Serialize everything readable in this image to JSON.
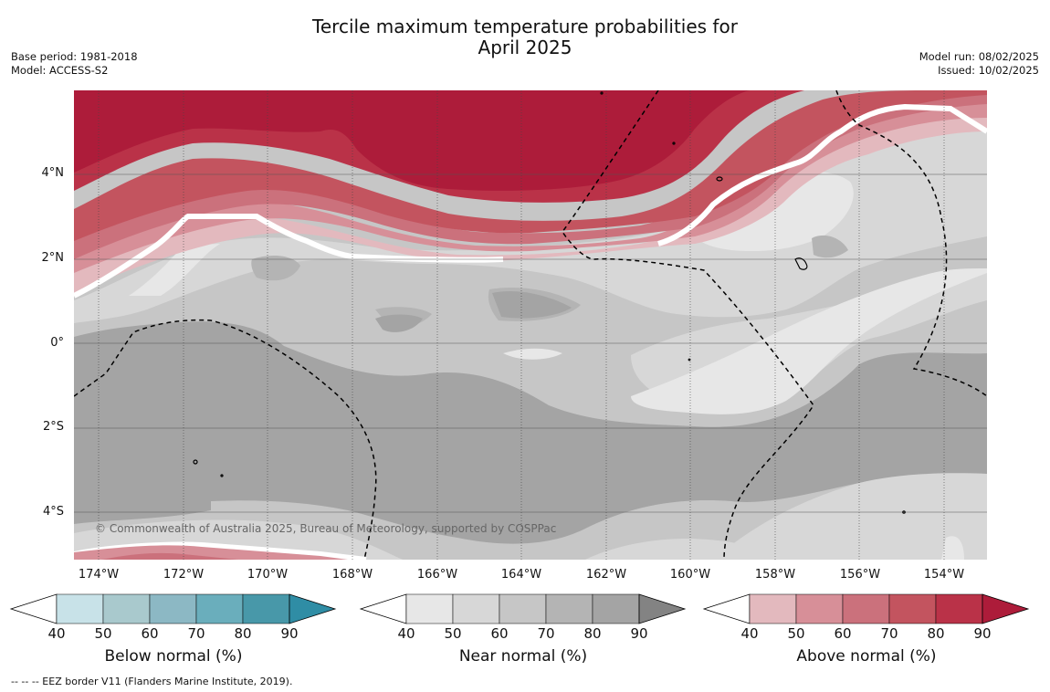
{
  "header": {
    "title_line1": "Tercile maximum temperature probabilities for",
    "title_line2": "April 2025",
    "base_period": "Base period: 1981-2018",
    "model": "Model: ACCESS-S2",
    "model_run": "Model run: 08/02/2025",
    "issued": "Issued: 10/02/2025"
  },
  "map": {
    "lat_labels": [
      "4°N",
      "2°N",
      "0°",
      "2°S",
      "4°S"
    ],
    "lon_labels": [
      "174°W",
      "172°W",
      "170°W",
      "168°W",
      "166°W",
      "164°W",
      "162°W",
      "160°W",
      "158°W",
      "156°W",
      "154°W"
    ],
    "copyright": "© Commonwealth of Australia 2025, Bureau of Meteorology, supported by COSPPac",
    "colors": {
      "near_normal_levels": [
        "#e7e7e7",
        "#d7d7d7",
        "#c6c6c6",
        "#b4b4b4",
        "#a4a4a4",
        "#838383"
      ],
      "above_normal_levels": [
        "#e3b9be",
        "#d78f98",
        "#cb717c",
        "#c3545f",
        "#ba3248",
        "#ad1c3a"
      ],
      "below_normal_levels": [
        "#c8e2e8",
        "#a9c9cd",
        "#8cb8c4",
        "#6aaebc",
        "#4898a9",
        "#2f8da5"
      ],
      "ocean_base": "#c6c6c6"
    }
  },
  "legends": [
    {
      "title": "Below normal (%)",
      "ticks": [
        "40",
        "50",
        "60",
        "70",
        "80",
        "90"
      ],
      "colors": [
        "#c8e2e8",
        "#a9c9cd",
        "#8cb8c4",
        "#6aaebc",
        "#4898a9",
        "#2f8da5"
      ]
    },
    {
      "title": "Near normal (%)",
      "ticks": [
        "40",
        "50",
        "60",
        "70",
        "80",
        "90"
      ],
      "colors": [
        "#e7e7e7",
        "#d7d7d7",
        "#c6c6c6",
        "#b4b4b4",
        "#a4a4a4",
        "#838383"
      ]
    },
    {
      "title": "Above normal (%)",
      "ticks": [
        "40",
        "50",
        "60",
        "70",
        "80",
        "90"
      ],
      "colors": [
        "#e3b9be",
        "#d78f98",
        "#cb717c",
        "#c3545f",
        "#ba3248",
        "#ad1c3a"
      ]
    }
  ],
  "footnote": "--  --  -- EEZ border V11 (Flanders Marine Institute, 2019)."
}
